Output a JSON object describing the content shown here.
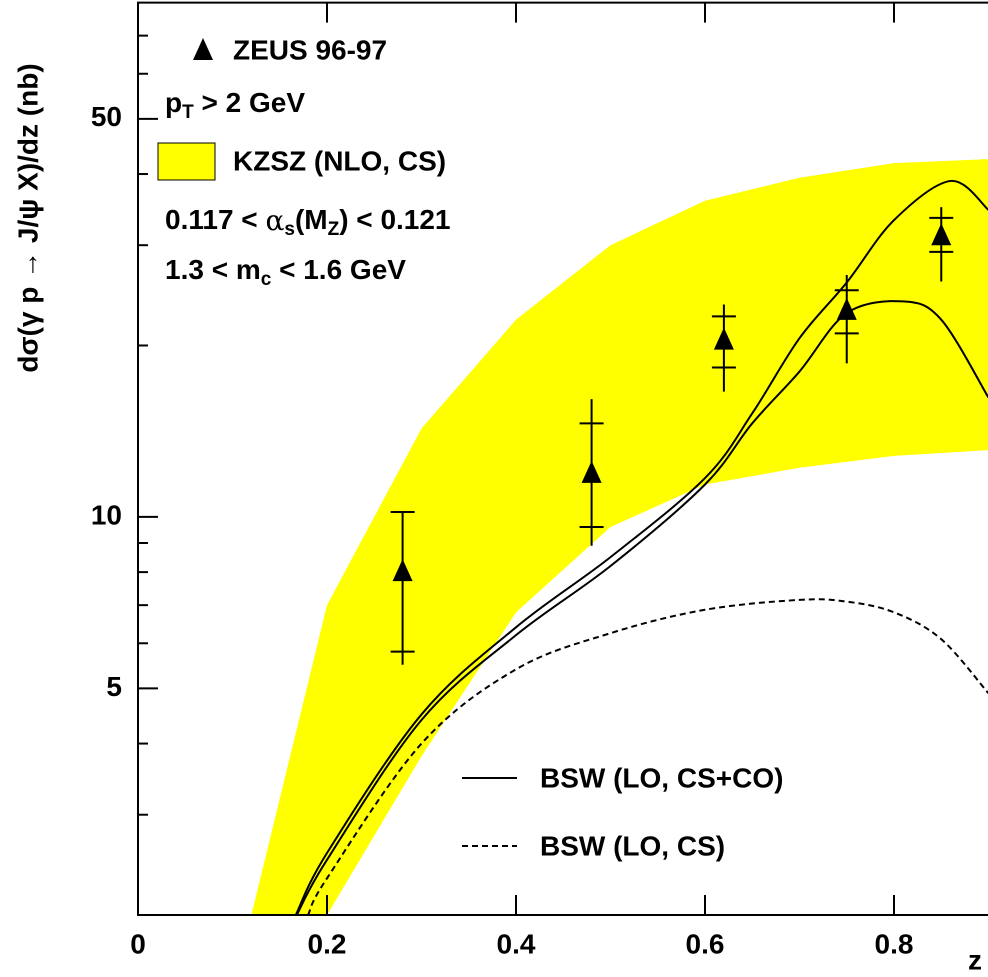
{
  "chart_data": {
    "type": "line",
    "x_label": "z",
    "y_label": "dσ(γ p → J/ψ X)/dz (nb)",
    "xlim": [
      0,
      0.9
    ],
    "ylim": [
      2,
      80
    ],
    "yscale": "log",
    "xticks": [
      0,
      0.2,
      0.4,
      0.6,
      0.8
    ],
    "yticks": [
      5,
      10,
      50
    ],
    "yminorticks": [
      3,
      4,
      6,
      7,
      8,
      9,
      20,
      30,
      40,
      60,
      70
    ],
    "data": {
      "name": "ZEUS 96-97",
      "marker": "triangle",
      "color": "#000000",
      "x": [
        0.28,
        0.48,
        0.62,
        0.75,
        0.85
      ],
      "values": [
        8.0,
        11.9,
        20.4,
        23.0,
        31.1
      ],
      "stat_low": [
        5.8,
        9.6,
        18.3,
        21.0,
        29.2
      ],
      "stat_high": [
        10.2,
        14.6,
        22.5,
        25.0,
        33.5
      ],
      "total_low": [
        5.5,
        8.9,
        16.6,
        18.6,
        25.9
      ],
      "total_high": [
        10.2,
        16.1,
        23.6,
        26.6,
        35.0
      ]
    },
    "band": {
      "name": "KZSZ (NLO, CS)",
      "color": "#ffff00",
      "x": [
        0.12,
        0.2,
        0.3,
        0.4,
        0.5,
        0.6,
        0.7,
        0.8,
        0.9
      ],
      "upper": [
        2.0,
        7.0,
        14.3,
        22.2,
        30.0,
        35.9,
        39.4,
        41.8,
        42.5
      ],
      "lower": [
        2.0,
        2.0,
        3.8,
        6.8,
        9.6,
        11.4,
        12.2,
        12.8,
        13.1
      ]
    },
    "curves": [
      {
        "name": "BSW (LO, CS+CO)",
        "color": "#000000",
        "dashed": false,
        "lines": [
          {
            "x": [
              0.167,
              0.2,
              0.3,
              0.4,
              0.5,
              0.6,
              0.65,
              0.7,
              0.75,
              0.8,
              0.86,
              0.9
            ],
            "values": [
              2.0,
              2.57,
              4.5,
              6.4,
              8.5,
              11.7,
              15.2,
              20.6,
              25.8,
              33.2,
              38.9,
              34.6
            ]
          },
          {
            "x": [
              0.168,
              0.2,
              0.3,
              0.4,
              0.5,
              0.6,
              0.65,
              0.7,
              0.75,
              0.81,
              0.85,
              0.9
            ],
            "values": [
              2.0,
              2.5,
              4.4,
              6.2,
              8.2,
              11.4,
              14.6,
              18.0,
              22.8,
              23.9,
              22.2,
              16.2
            ]
          }
        ]
      },
      {
        "name": "BSW (LO, CS)",
        "color": "#000000",
        "dashed": true,
        "lines": [
          {
            "x": [
              0.18,
              0.2,
              0.3,
              0.4,
              0.5,
              0.6,
              0.7,
              0.75,
              0.8,
              0.85,
              0.9
            ],
            "values": [
              2.0,
              2.32,
              4.0,
              5.4,
              6.25,
              6.87,
              7.15,
              7.1,
              6.8,
              6.1,
              4.9
            ]
          }
        ]
      }
    ],
    "annotations": {
      "pt_cut": [
        "p",
        "T",
        " > 2 GeV"
      ],
      "alpha_range": [
        "0.117 < ",
        "α",
        "s",
        "(M",
        "Z",
        ") < 0.121"
      ],
      "mc_range": [
        "1.3 < m",
        "c",
        " < 1.6 GeV"
      ]
    }
  }
}
